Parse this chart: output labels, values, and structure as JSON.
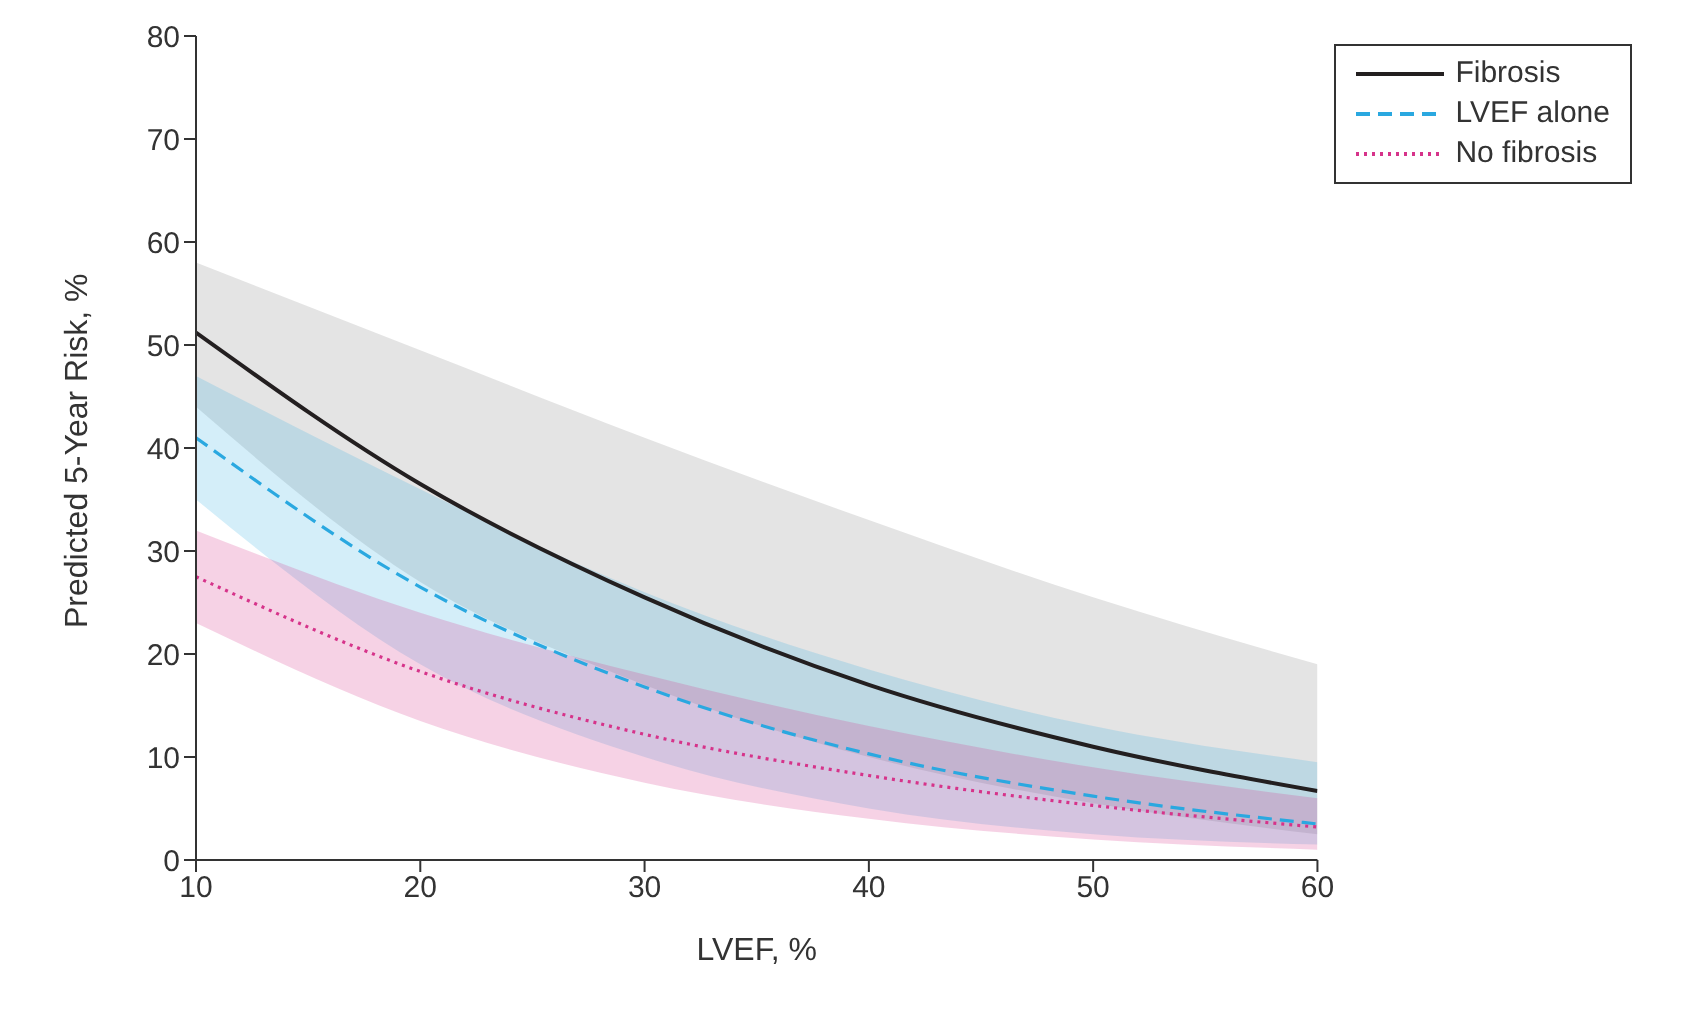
{
  "chart_data": {
    "type": "line",
    "xlabel": "LVEF, %",
    "ylabel": "Predicted 5-Year Risk, %",
    "x": [
      10,
      20,
      30,
      40,
      50,
      60
    ],
    "series": [
      {
        "name": "Fibrosis",
        "color": "#231f20",
        "line_style": "solid",
        "values": [
          51.2,
          36.5,
          25.5,
          17,
          11,
          6.7
        ],
        "lower": [
          44,
          27,
          17,
          10,
          5.5,
          2.5
        ],
        "upper": [
          58,
          49.5,
          41,
          33,
          25.5,
          19
        ]
      },
      {
        "name": "LVEF alone",
        "color": "#2aa8e0",
        "line_style": "dashed",
        "values": [
          41,
          26.5,
          16.8,
          10.3,
          6.2,
          3.5
        ],
        "lower": [
          35,
          19,
          10,
          5,
          2.5,
          1.5
        ],
        "upper": [
          47,
          36,
          26,
          18.5,
          13,
          9.5
        ]
      },
      {
        "name": "No fibrosis",
        "color": "#d6338a",
        "line_style": "dotted",
        "values": [
          27.5,
          18.3,
          12.2,
          8.2,
          5.3,
          3.2
        ],
        "lower": [
          23,
          13.5,
          7.5,
          4,
          2,
          1
        ],
        "upper": [
          32,
          24,
          18,
          13,
          9,
          6
        ]
      }
    ],
    "xlim": [
      10,
      60
    ],
    "xticks": [
      10,
      20,
      30,
      40,
      50,
      60
    ],
    "ylim": [
      0,
      80
    ],
    "yticks": [
      0,
      10,
      20,
      30,
      40,
      50,
      60,
      70,
      80
    ],
    "grid": false,
    "legend": "top right",
    "marker": "none"
  }
}
